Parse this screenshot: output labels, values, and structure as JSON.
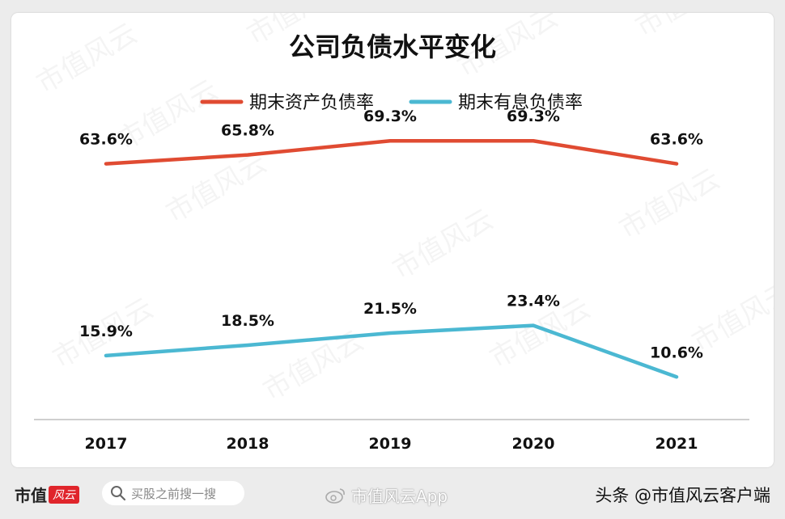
{
  "chart_data": {
    "type": "line",
    "title": "公司负债水平变化",
    "categories": [
      "2017",
      "2018",
      "2019",
      "2020",
      "2021"
    ],
    "series": [
      {
        "name": "期末资产负债率",
        "color": "#e04b32",
        "values": [
          63.6,
          65.8,
          69.3,
          69.3,
          63.6
        ],
        "labels": [
          "63.6%",
          "65.8%",
          "69.3%",
          "69.3%",
          "63.6%"
        ]
      },
      {
        "name": "期末有息负债率",
        "color": "#4bb8d2",
        "values": [
          15.9,
          18.5,
          21.5,
          23.4,
          10.6
        ],
        "labels": [
          "15.9%",
          "18.5%",
          "21.5%",
          "23.4%",
          "10.6%"
        ]
      }
    ],
    "legend": "top-center",
    "grid": false,
    "ylim": [
      0,
      80
    ]
  },
  "watermark": "市值风云",
  "footer": {
    "logo_text": "市值",
    "logo_tag": "风云",
    "search_placeholder": "买股之前搜一搜",
    "weibo_text": "市值风云App",
    "credit": "头条 @市值风云客户端"
  }
}
